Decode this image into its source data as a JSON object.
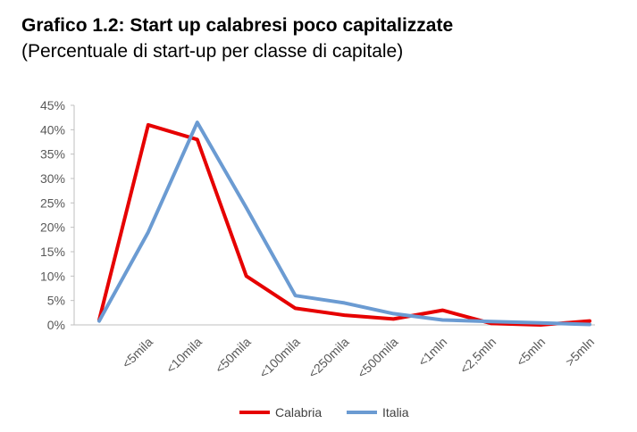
{
  "header": {
    "title": "Grafico 1.2: Start up calabresi poco capitalizzate",
    "subtitle": "(Percentuale di start-up per classe di capitale)"
  },
  "chart_data": {
    "type": "line",
    "categories": [
      "",
      "<5mila",
      "<10mila",
      "<50mila",
      "<100mila",
      "<250mila",
      "<500mila",
      "<1mln",
      "<2,5mln",
      "<5mln",
      ">5mln"
    ],
    "y_ticks": [
      "0%",
      "5%",
      "10%",
      "15%",
      "20%",
      "25%",
      "30%",
      "35%",
      "40%",
      "45%"
    ],
    "ylim": [
      0,
      45
    ],
    "grid": false,
    "legend_position": "bottom",
    "series": [
      {
        "name": "Calabria",
        "color": "#e60000",
        "values": [
          1.0,
          41.0,
          38.0,
          10.0,
          3.4,
          2.0,
          1.2,
          3.0,
          0.3,
          0.0,
          0.8
        ]
      },
      {
        "name": "Italia",
        "color": "#6b9bd2",
        "values": [
          0.8,
          19.0,
          41.5,
          24.0,
          6.0,
          4.5,
          2.3,
          1.0,
          0.7,
          0.4,
          0.1
        ]
      }
    ]
  }
}
